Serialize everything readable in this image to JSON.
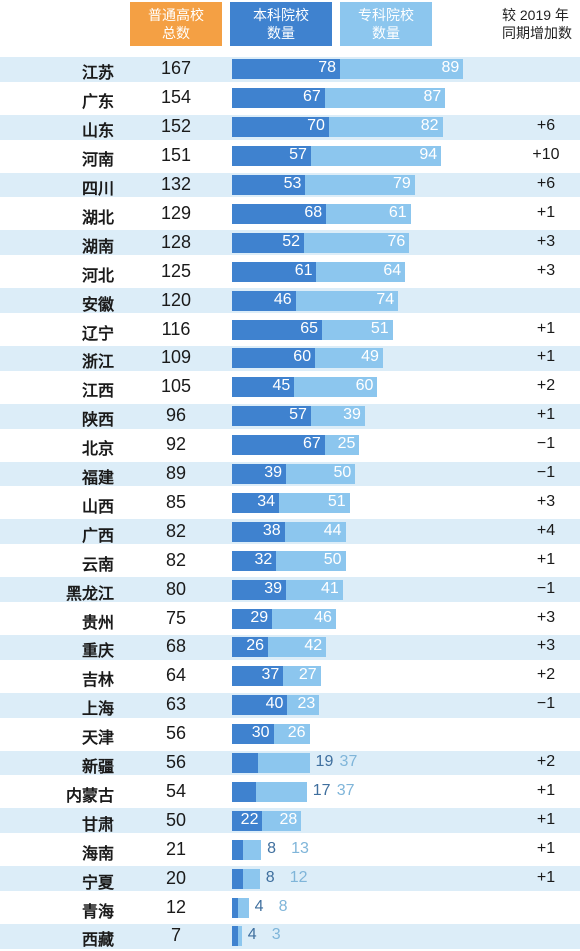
{
  "chart_data": {
    "type": "bar",
    "stacked": true,
    "orientation": "horizontal",
    "columns": {
      "total": "普通高校\n总数",
      "undergrad": "本科院校\n数量",
      "vocational": "专科院校\n数量",
      "increase": "较 2019 年\n同期增加数"
    },
    "categories": [
      "江苏",
      "广东",
      "山东",
      "河南",
      "四川",
      "湖北",
      "湖南",
      "河北",
      "安徽",
      "辽宁",
      "浙江",
      "江西",
      "陕西",
      "北京",
      "福建",
      "山西",
      "广西",
      "云南",
      "黑龙江",
      "贵州",
      "重庆",
      "吉林",
      "上海",
      "天津",
      "新疆",
      "内蒙古",
      "甘肃",
      "海南",
      "宁夏",
      "青海",
      "西藏"
    ],
    "totals": [
      167,
      154,
      152,
      151,
      132,
      129,
      128,
      125,
      120,
      116,
      109,
      105,
      96,
      92,
      89,
      85,
      82,
      82,
      80,
      75,
      68,
      64,
      63,
      56,
      56,
      54,
      50,
      21,
      20,
      12,
      7
    ],
    "series": [
      {
        "name": "本科院校数量",
        "color": "#3f82cf",
        "values": [
          78,
          67,
          70,
          57,
          53,
          68,
          52,
          61,
          46,
          65,
          60,
          45,
          57,
          67,
          39,
          34,
          38,
          32,
          39,
          29,
          26,
          37,
          40,
          30,
          19,
          17,
          22,
          8,
          8,
          4,
          4
        ]
      },
      {
        "name": "专科院校数量",
        "color": "#8cc6ee",
        "values": [
          89,
          87,
          82,
          94,
          79,
          61,
          76,
          64,
          74,
          51,
          49,
          60,
          39,
          25,
          50,
          51,
          44,
          50,
          41,
          46,
          42,
          27,
          23,
          26,
          37,
          37,
          28,
          13,
          12,
          8,
          3
        ]
      }
    ],
    "increase": [
      "",
      "",
      "+6",
      "+10",
      "+6",
      "+1",
      "+3",
      "+3",
      "",
      "+1",
      "+1",
      "+2",
      "+1",
      "−1",
      "−1",
      "+3",
      "+4",
      "+1",
      "−1",
      "+3",
      "+3",
      "+2",
      "−1",
      "",
      "+2",
      "+1",
      "+1",
      "+1",
      "+1",
      "",
      ""
    ]
  }
}
